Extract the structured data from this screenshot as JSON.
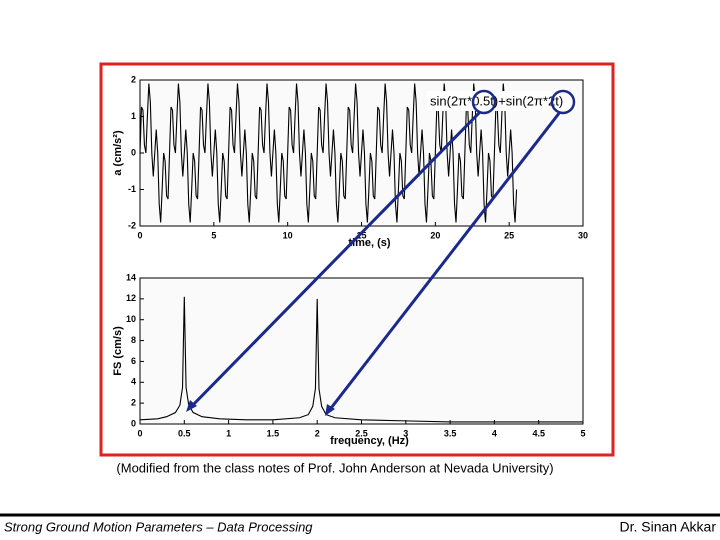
{
  "chart_data": [
    {
      "type": "line",
      "annotation": "sin(2π*0.5t)+sin(2π*2t)",
      "xlabel": "time, (s)",
      "ylabel": "a (cm/s²)",
      "color": "#000000",
      "xlim": [
        0,
        30
      ],
      "ylim": [
        -2,
        2
      ],
      "xticks": [
        0,
        5,
        10,
        15,
        20,
        25,
        30
      ],
      "yticks": [
        -2,
        -1,
        0,
        1,
        2
      ],
      "x": [
        0,
        0.1,
        0.2,
        0.3,
        0.4,
        0.5,
        0.6,
        0.7,
        0.8,
        0.9,
        1,
        1.1,
        1.2,
        1.3,
        1.4,
        1.5,
        1.6,
        1.7,
        1.8,
        1.9,
        2,
        2.1,
        2.2,
        2.3,
        2.4,
        2.5,
        2.6,
        2.7,
        2.8,
        2.9,
        3,
        3.1,
        3.2,
        3.3,
        3.4,
        3.5,
        3.6,
        3.7,
        3.8,
        3.9,
        4,
        4.1,
        4.2,
        4.3,
        4.4,
        4.5,
        4.6,
        4.7,
        4.8,
        4.9,
        5,
        5.1,
        5.2,
        5.3,
        5.4,
        5.5,
        5.6,
        5.7,
        5.8,
        5.9,
        6,
        6.1,
        6.2,
        6.3,
        6.4,
        6.5,
        6.6,
        6.7,
        6.8,
        6.9,
        7,
        7.1,
        7.2,
        7.3,
        7.4,
        7.5,
        7.6,
        7.7,
        7.8,
        7.9,
        8,
        8.1,
        8.2,
        8.3,
        8.4,
        8.5,
        8.6,
        8.7,
        8.8,
        8.9,
        9,
        9.1,
        9.2,
        9.3,
        9.4,
        9.5,
        9.6,
        9.7,
        9.8,
        9.9,
        10,
        10.1,
        10.2,
        10.3,
        10.4,
        10.5,
        10.6,
        10.7,
        10.8,
        10.9,
        11,
        11.1,
        11.2,
        11.3,
        11.4,
        11.5,
        11.6,
        11.7,
        11.8,
        11.9,
        12,
        12.1,
        12.2,
        12.3,
        12.4,
        12.5,
        12.6,
        12.7,
        12.8,
        12.9,
        13,
        13.1,
        13.2,
        13.3,
        13.4,
        13.5,
        13.6,
        13.7,
        13.8,
        13.9,
        14,
        14.1,
        14.2,
        14.3,
        14.4,
        14.5,
        14.6,
        14.7,
        14.8,
        14.9,
        15,
        15.1,
        15.2,
        15.3,
        15.4,
        15.5,
        15.6,
        15.7,
        15.8,
        15.9,
        16,
        16.1,
        16.2,
        16.3,
        16.4,
        16.5,
        16.6,
        16.7,
        16.8,
        16.9,
        17,
        17.1,
        17.2,
        17.3,
        17.4,
        17.5,
        17.6,
        17.7,
        17.8,
        17.9,
        18,
        18.1,
        18.2,
        18.3,
        18.4,
        18.5,
        18.6,
        18.7,
        18.8,
        18.9,
        19,
        19.1,
        19.2,
        19.3,
        19.4,
        19.5,
        19.6,
        19.7,
        19.8,
        19.9,
        20,
        20.1,
        20.2,
        20.3,
        20.4,
        20.5,
        20.6,
        20.7,
        20.8,
        20.9,
        21,
        21.1,
        21.2,
        21.3,
        21.4,
        21.5,
        21.6,
        21.7,
        21.8,
        21.9,
        22,
        22.1,
        22.2,
        22.3,
        22.4,
        22.5,
        22.6,
        22.7,
        22.8,
        22.9,
        23,
        23.1,
        23.2,
        23.3,
        23.4,
        23.5,
        23.6,
        23.7,
        23.8,
        23.9,
        24,
        24.1,
        24.2,
        24.3,
        24.4,
        24.5,
        24.6,
        24.7,
        24.8,
        24.9,
        25,
        25.1,
        25.2,
        25.3,
        25.4,
        25.5
      ],
      "values": [
        0,
        1.26,
        1.176,
        0.221,
        0,
        1,
        1.902,
        1.397,
        0,
        -0.642,
        0,
        0.642,
        0,
        -1.397,
        -1.902,
        -1,
        0,
        -0.221,
        -1.176,
        -1.26,
        0,
        1.26,
        1.176,
        0.221,
        0,
        1,
        1.902,
        1.397,
        0,
        -0.642,
        0,
        0.642,
        0,
        -1.397,
        -1.902,
        -1,
        0,
        -0.221,
        -1.176,
        -1.26,
        0,
        1.26,
        1.176,
        0.221,
        0,
        1,
        1.902,
        1.397,
        0,
        -0.642,
        0,
        0.642,
        0,
        -1.397,
        -1.902,
        -1,
        0,
        -0.221,
        -1.176,
        -1.26,
        0,
        1.26,
        1.176,
        0.221,
        0,
        1,
        1.902,
        1.397,
        0,
        -0.642,
        0,
        0.642,
        0,
        -1.397,
        -1.902,
        -1,
        0,
        -0.221,
        -1.176,
        -1.26,
        0,
        1.26,
        1.176,
        0.221,
        0,
        1,
        1.902,
        1.397,
        0,
        -0.642,
        0,
        0.642,
        0,
        -1.397,
        -1.902,
        -1,
        0,
        -0.221,
        -1.176,
        -1.26,
        0,
        1.26,
        1.176,
        0.221,
        0,
        1,
        1.902,
        1.397,
        0,
        -0.642,
        0,
        0.642,
        0,
        -1.397,
        -1.902,
        -1,
        0,
        -0.221,
        -1.176,
        -1.26,
        0,
        1.26,
        1.176,
        0.221,
        0,
        1,
        1.902,
        1.397,
        0,
        -0.642,
        0,
        0.642,
        0,
        -1.397,
        -1.902,
        -1,
        0,
        -0.221,
        -1.176,
        -1.26,
        0,
        1.26,
        1.176,
        0.221,
        0,
        1,
        1.902,
        1.397,
        0,
        -0.642,
        0,
        0.642,
        0,
        -1.397,
        -1.902,
        -1,
        0,
        -0.221,
        -1.176,
        -1.26,
        0,
        1.26,
        1.176,
        0.221,
        0,
        1,
        1.902,
        1.397,
        0,
        -0.642,
        0,
        0.642,
        0,
        -1.397,
        -1.902,
        -1,
        0,
        -0.221,
        -1.176,
        -1.26,
        0,
        1.26,
        1.176,
        0.221,
        0,
        1,
        1.902,
        1.397,
        0,
        -0.642,
        0,
        0.642,
        0,
        -1.397,
        -1.902,
        -1,
        0,
        -0.221,
        -1.176,
        -1.26,
        0,
        1.26,
        1.176,
        0.221,
        0,
        1,
        1.902,
        1.397,
        0,
        -0.642,
        0,
        0.642,
        0,
        -1.397,
        -1.902,
        -1,
        0,
        -0.221,
        -1.176,
        -1.26,
        0,
        1.26,
        1.176,
        0.221,
        0,
        1,
        1.902,
        1.397,
        0,
        -0.642,
        0,
        0.642,
        0,
        -1.397,
        -1.902,
        -1,
        0,
        -0.221,
        -1.176,
        -1.26,
        0,
        1.26,
        1.176,
        0.221,
        0,
        1,
        1.902,
        1.397,
        0,
        -0.642,
        0,
        0.642,
        0,
        -1.397,
        -1.902,
        -1
      ]
    },
    {
      "type": "line",
      "xlabel": "frequency, (Hz)",
      "ylabel": "FS (cm/s)",
      "color": "#000000",
      "xlim": [
        0,
        5
      ],
      "ylim": [
        0,
        14
      ],
      "xticks": [
        0,
        0.5,
        1,
        1.5,
        2,
        2.5,
        3,
        3.5,
        4,
        4.5,
        5
      ],
      "yticks": [
        0,
        2,
        4,
        6,
        8,
        10,
        12,
        14
      ],
      "x": [
        0,
        0.2,
        0.3,
        0.4,
        0.45,
        0.48,
        0.5,
        0.52,
        0.55,
        0.6,
        0.7,
        0.9,
        1.2,
        1.5,
        1.8,
        1.9,
        1.95,
        1.98,
        2,
        2.02,
        2.05,
        2.1,
        2.2,
        2.5,
        3,
        3.5,
        4,
        4.5,
        5
      ],
      "values": [
        0.4,
        0.5,
        0.7,
        1.1,
        1.8,
        3.5,
        12.2,
        3.5,
        1.8,
        1.1,
        0.7,
        0.5,
        0.4,
        0.4,
        0.6,
        0.9,
        1.7,
        3.4,
        12,
        3.4,
        1.7,
        0.9,
        0.6,
        0.4,
        0.3,
        0.2,
        0.2,
        0.2,
        0.2
      ]
    }
  ],
  "caption": "(Modified from the class notes of Prof. John Anderson at Nevada University)",
  "footer": {
    "left": "Strong Ground Motion Parameters – Data Processing",
    "right": "Dr. Sinan Akkar"
  }
}
